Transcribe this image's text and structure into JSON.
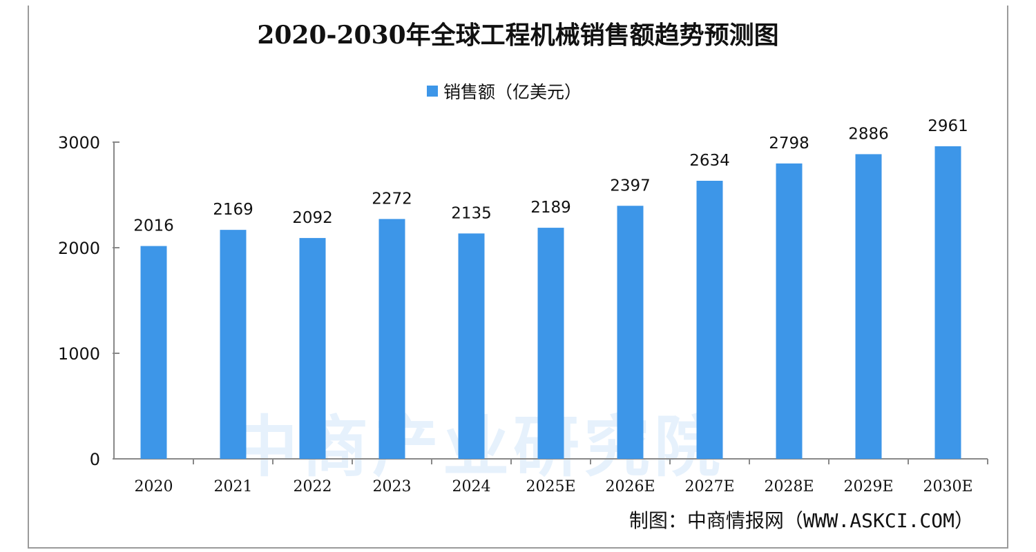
{
  "chart_data": {
    "type": "bar",
    "title": "2020-2030年全球工程机械销售额趋势预测图",
    "legend": [
      "销售额（亿美元）"
    ],
    "legend_position": "top-center",
    "categories": [
      "2020",
      "2021",
      "2022",
      "2023",
      "2024",
      "2025E",
      "2026E",
      "2027E",
      "2028E",
      "2029E",
      "2030E"
    ],
    "values": [
      2016,
      2169,
      2092,
      2272,
      2135,
      2189,
      2397,
      2634,
      2798,
      2886,
      2961
    ],
    "ylim": [
      0,
      3000
    ],
    "yticks": [
      0,
      1000,
      2000,
      3000
    ],
    "xlabel": "",
    "ylabel": "",
    "grid": false,
    "bar_color": "#3d96e8"
  },
  "source": "制图：中商情报网（WWW.ASKCI.COM）",
  "watermark": "中商产业研究院"
}
